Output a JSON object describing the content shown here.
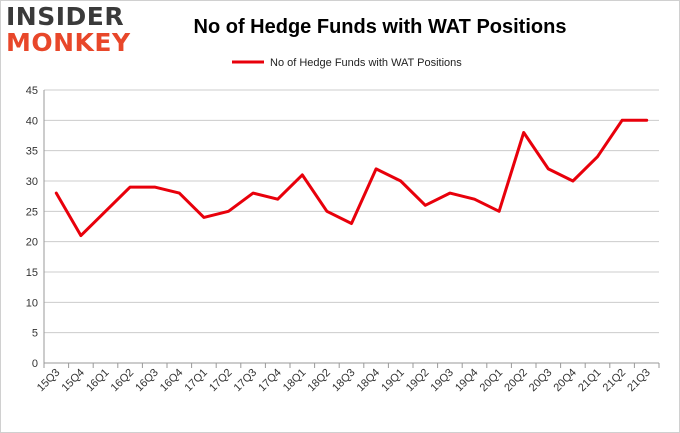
{
  "logo": {
    "line1": "INSIDER",
    "line2": "MONKEY"
  },
  "colors": {
    "series": "#e8000b",
    "grid": "#cccccc",
    "axis": "#999999",
    "logo_accent": "#e8472a"
  },
  "chart_data": {
    "type": "line",
    "title": "No of Hedge Funds with WAT Positions",
    "xlabel": "",
    "ylabel": "",
    "ylim": [
      0,
      45
    ],
    "yticks": [
      0,
      5,
      10,
      15,
      20,
      25,
      30,
      35,
      40,
      45
    ],
    "grid": "horizontal",
    "legend": "top-center",
    "categories": [
      "15Q3",
      "15Q4",
      "16Q1",
      "16Q2",
      "16Q3",
      "16Q4",
      "17Q1",
      "17Q2",
      "17Q3",
      "17Q4",
      "18Q1",
      "18Q2",
      "18Q3",
      "18Q4",
      "19Q1",
      "19Q2",
      "19Q3",
      "19Q4",
      "20Q1",
      "20Q2",
      "20Q3",
      "20Q4",
      "21Q1",
      "21Q2",
      "21Q3"
    ],
    "series": [
      {
        "name": "No of Hedge Funds with WAT Positions",
        "values": [
          28,
          21,
          25,
          29,
          29,
          28,
          24,
          25,
          28,
          27,
          31,
          25,
          23,
          32,
          30,
          26,
          28,
          27,
          25,
          38,
          32,
          30,
          34,
          40,
          40
        ]
      }
    ]
  }
}
